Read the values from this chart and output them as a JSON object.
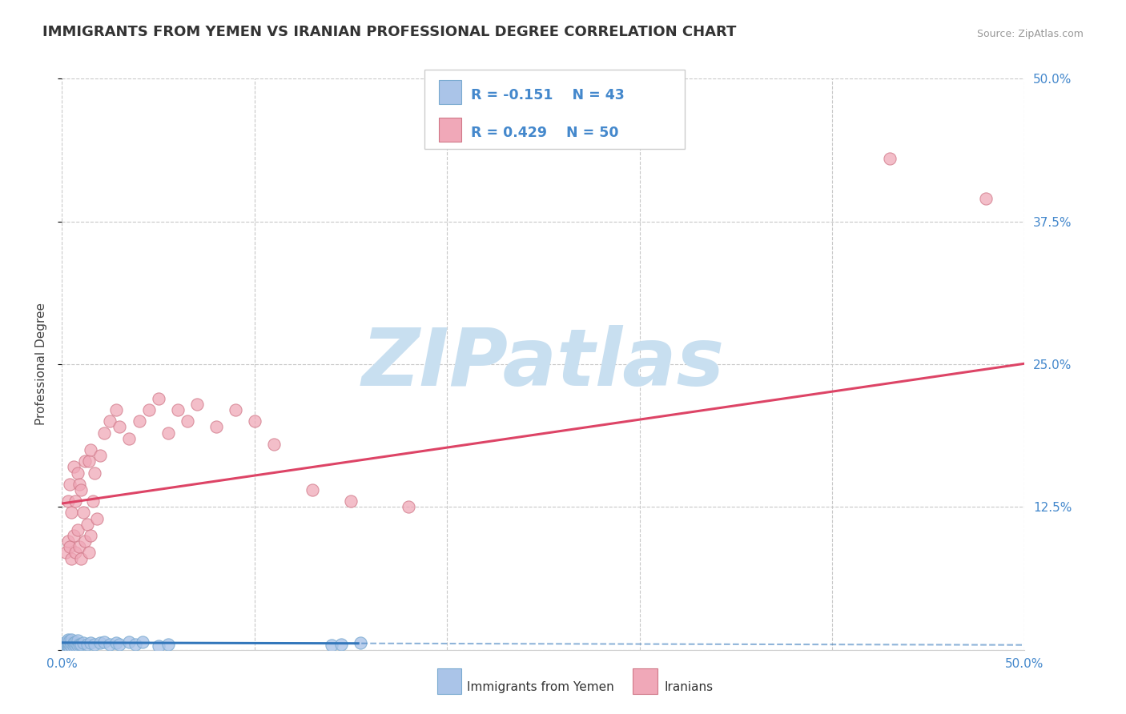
{
  "title": "IMMIGRANTS FROM YEMEN VS IRANIAN PROFESSIONAL DEGREE CORRELATION CHART",
  "source_text": "Source: ZipAtlas.com",
  "ylabel": "Professional Degree",
  "xlim": [
    0.0,
    0.5
  ],
  "ylim": [
    0.0,
    0.5
  ],
  "yticks": [
    0.0,
    0.125,
    0.25,
    0.375,
    0.5
  ],
  "background_color": "#ffffff",
  "grid_color": "#c8c8c8",
  "watermark_text": "ZIPatlas",
  "watermark_color": "#c8dff0",
  "legend_R1": "R = -0.151",
  "legend_N1": "N = 43",
  "legend_R2": "R = 0.429",
  "legend_N2": "N = 50",
  "series1_color": "#aac4e8",
  "series1_edge": "#7aaad0",
  "series2_color": "#f0a8b8",
  "series2_edge": "#d07888",
  "line1_color": "#3377bb",
  "line2_color": "#dd4466",
  "title_fontsize": 13,
  "label_fontsize": 11,
  "tick_color": "#4488cc",
  "Yemen_x": [
    0.001,
    0.001,
    0.001,
    0.002,
    0.002,
    0.002,
    0.002,
    0.003,
    0.003,
    0.003,
    0.003,
    0.003,
    0.004,
    0.004,
    0.004,
    0.005,
    0.005,
    0.005,
    0.006,
    0.006,
    0.007,
    0.007,
    0.008,
    0.008,
    0.009,
    0.01,
    0.011,
    0.013,
    0.015,
    0.017,
    0.02,
    0.022,
    0.025,
    0.028,
    0.03,
    0.035,
    0.038,
    0.042,
    0.05,
    0.055,
    0.14,
    0.145,
    0.155
  ],
  "Yemen_y": [
    0.002,
    0.004,
    0.005,
    0.001,
    0.003,
    0.005,
    0.007,
    0.002,
    0.004,
    0.006,
    0.007,
    0.009,
    0.002,
    0.005,
    0.008,
    0.003,
    0.006,
    0.009,
    0.003,
    0.006,
    0.004,
    0.007,
    0.004,
    0.008,
    0.005,
    0.005,
    0.006,
    0.005,
    0.006,
    0.005,
    0.006,
    0.007,
    0.005,
    0.006,
    0.005,
    0.007,
    0.005,
    0.007,
    0.003,
    0.005,
    0.004,
    0.005,
    0.006
  ],
  "Iran_x": [
    0.002,
    0.003,
    0.003,
    0.004,
    0.004,
    0.005,
    0.005,
    0.006,
    0.006,
    0.007,
    0.007,
    0.008,
    0.008,
    0.009,
    0.009,
    0.01,
    0.01,
    0.011,
    0.012,
    0.012,
    0.013,
    0.014,
    0.014,
    0.015,
    0.015,
    0.016,
    0.017,
    0.018,
    0.02,
    0.022,
    0.025,
    0.028,
    0.03,
    0.035,
    0.04,
    0.045,
    0.05,
    0.055,
    0.06,
    0.065,
    0.07,
    0.08,
    0.09,
    0.1,
    0.11,
    0.13,
    0.15,
    0.18,
    0.43,
    0.48
  ],
  "Iran_y": [
    0.085,
    0.095,
    0.13,
    0.09,
    0.145,
    0.08,
    0.12,
    0.1,
    0.16,
    0.085,
    0.13,
    0.105,
    0.155,
    0.09,
    0.145,
    0.08,
    0.14,
    0.12,
    0.095,
    0.165,
    0.11,
    0.085,
    0.165,
    0.1,
    0.175,
    0.13,
    0.155,
    0.115,
    0.17,
    0.19,
    0.2,
    0.21,
    0.195,
    0.185,
    0.2,
    0.21,
    0.22,
    0.19,
    0.21,
    0.2,
    0.215,
    0.195,
    0.21,
    0.2,
    0.18,
    0.14,
    0.13,
    0.125,
    0.43,
    0.395
  ],
  "line1_intercept": 0.0062,
  "line1_slope": -0.004,
  "line1_solid_end": 0.155,
  "line2_intercept": 0.128,
  "line2_slope": 0.245
}
